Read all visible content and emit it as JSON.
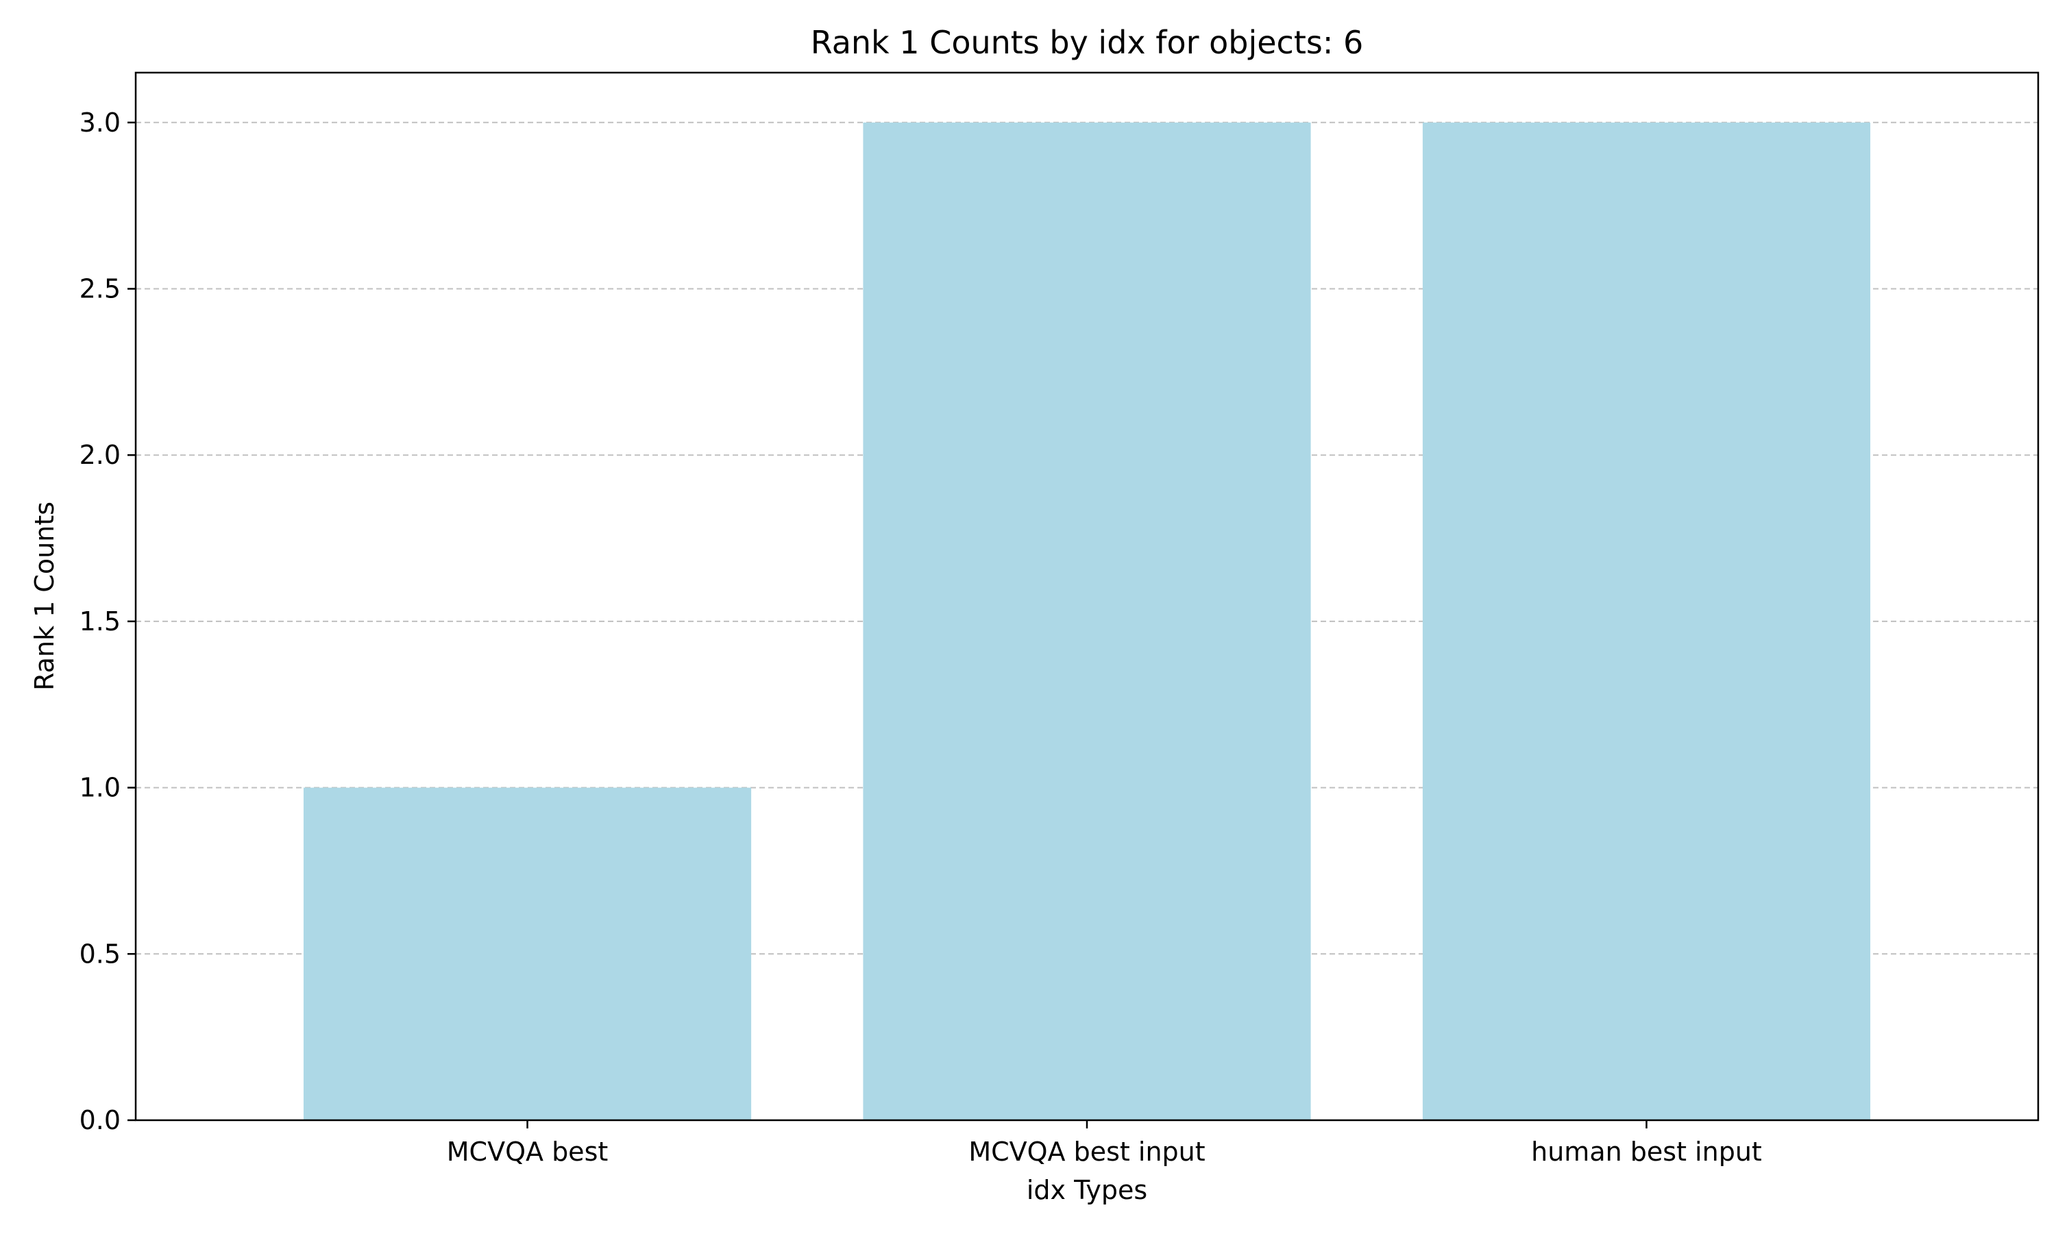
{
  "chart_data": {
    "type": "bar",
    "title": "Rank 1 Counts by idx for objects: 6",
    "xlabel": "idx Types",
    "ylabel": "Rank 1 Counts",
    "categories": [
      "MCVQA best",
      "MCVQA best input",
      "human best input"
    ],
    "values": [
      1,
      3,
      3
    ],
    "ylim": [
      0,
      3.15
    ],
    "yticks": [
      "0.0",
      "0.5",
      "1.0",
      "1.5",
      "2.0",
      "2.5",
      "3.0"
    ],
    "grid": "y, dashed",
    "bar_color": "#add8e6",
    "grid_color": "#c0c0c0"
  }
}
